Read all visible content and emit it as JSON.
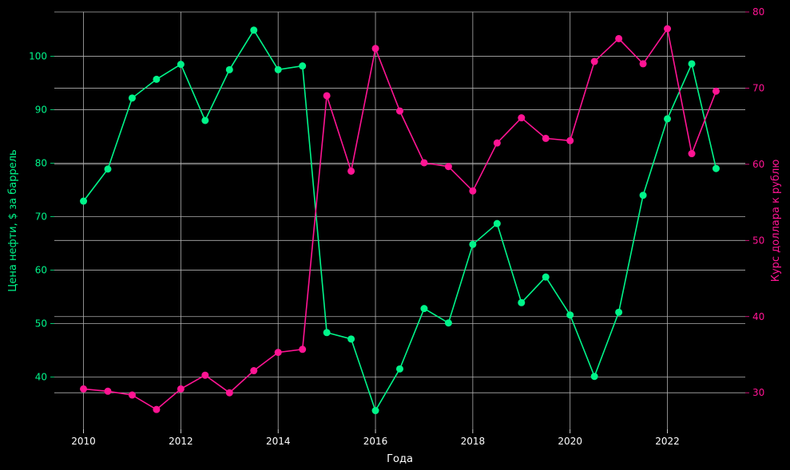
{
  "chart_data": {
    "type": "line",
    "xlabel": "Года",
    "ylabel_left": "Цена нефти, $ за баррель",
    "ylabel_right": "Курс доллара к рублю",
    "x_ticks": [
      "2010",
      "2012",
      "2014",
      "2016",
      "2018",
      "2020",
      "2022"
    ],
    "y_left_ticks": [
      "40",
      "50",
      "60",
      "70",
      "80",
      "90",
      "100"
    ],
    "y_right_ticks": [
      "30",
      "40",
      "50",
      "60",
      "70",
      "80"
    ],
    "xlim": [
      2009.4,
      2023.6
    ],
    "ylim_left": [
      30.2,
      108.3
    ],
    "ylim_right": [
      25.2,
      80.0
    ],
    "grid": true,
    "colors": {
      "background": "#000000",
      "text": "#ffffff",
      "grid": "#b0b0b0",
      "oil": "#00f58a",
      "usd": "#ff1493"
    },
    "series": [
      {
        "axis": "left",
        "color": "#00f58a",
        "x": [
          2010,
          2010.5,
          2011,
          2011.5,
          2012,
          2012.5,
          2013,
          2013.5,
          2014,
          2014.5,
          2015,
          2015.5,
          2016,
          2016.5,
          2017,
          2017.5,
          2018,
          2018.5,
          2019,
          2019.5,
          2020,
          2020.5,
          2021,
          2021.5,
          2022,
          2022.5,
          2023
        ],
        "values": [
          72.9,
          78.9,
          92.2,
          95.7,
          98.5,
          88.0,
          97.5,
          104.9,
          97.5,
          98.2,
          48.3,
          47.1,
          33.7,
          41.5,
          52.8,
          50.1,
          64.8,
          68.7,
          53.9,
          58.7,
          51.6,
          40.1,
          52.1,
          74.0,
          88.3,
          98.6,
          79.0
        ]
      },
      {
        "axis": "right",
        "color": "#ff1493",
        "x": [
          2010,
          2010.5,
          2011,
          2011.5,
          2012,
          2012.5,
          2013,
          2013.5,
          2014,
          2014.5,
          2015,
          2015.5,
          2016,
          2016.5,
          2017,
          2017.5,
          2018,
          2018.5,
          2019,
          2019.5,
          2020,
          2020.5,
          2021,
          2021.5,
          2022,
          2022.5,
          2023
        ],
        "values": [
          30.5,
          30.2,
          29.7,
          27.8,
          30.5,
          32.3,
          30.0,
          32.9,
          35.3,
          35.7,
          69.0,
          59.1,
          75.2,
          67.0,
          60.2,
          59.7,
          56.5,
          62.8,
          66.1,
          63.4,
          63.1,
          73.5,
          76.5,
          73.2,
          77.8,
          61.4,
          69.6
        ]
      }
    ]
  }
}
